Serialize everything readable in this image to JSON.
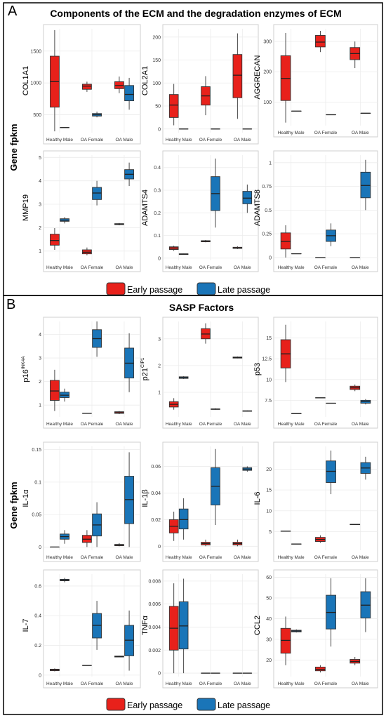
{
  "panel_a": {
    "letter": "A",
    "title": "Components of the ECM and the degradation enzymes of ECM",
    "y_group_label": "Gene fpkm"
  },
  "panel_b": {
    "letter": "B",
    "title": "SASP Factors",
    "y_group_label": "Gene fpkm"
  },
  "legend": {
    "early_label": "Early passage",
    "late_label": "Late passage",
    "early_color": "#E8211B",
    "late_color": "#1A75B8"
  },
  "chart_data": [
    {
      "type": "box",
      "ylabel": "COL1A1",
      "ylabel_sup": "",
      "categories": [
        "Healthy Male",
        "OA Female",
        "OA Male"
      ],
      "yticks": [
        500,
        1000,
        1500
      ],
      "ylim": [
        220,
        1850
      ],
      "series": [
        {
          "name": "Early passage",
          "boxes": [
            [
              240,
              620,
              1020,
              1420,
              1830
            ],
            [
              860,
              900,
              950,
              980,
              1020
            ],
            [
              840,
              910,
              960,
              1020,
              1100
            ]
          ]
        },
        {
          "name": "Late passage",
          "boxes": [
            [
              300,
              300,
              300,
              300,
              300
            ],
            [
              460,
              480,
              500,
              520,
              550
            ],
            [
              580,
              720,
              820,
              960,
              1080
            ]
          ]
        }
      ]
    },
    {
      "type": "box",
      "ylabel": "COL2A1",
      "ylabel_sup": "",
      "categories": [
        "Healthy Male",
        "OA Female",
        "OA Male"
      ],
      "yticks": [
        0,
        50,
        100,
        150,
        200
      ],
      "ylim": [
        -8,
        218
      ],
      "series": [
        {
          "name": "Early passage",
          "boxes": [
            [
              8,
              25,
              52,
              75,
              98
            ],
            [
              30,
              52,
              72,
              92,
              115
            ],
            [
              22,
              68,
              117,
              162,
              208
            ]
          ]
        },
        {
          "name": "Late passage",
          "boxes": [
            [
              0,
              0,
              0,
              0,
              0
            ],
            [
              0,
              0,
              0,
              0,
              0
            ],
            [
              0,
              0,
              0,
              0,
              0
            ]
          ]
        }
      ]
    },
    {
      "type": "box",
      "ylabel": "AGGRECAN",
      "ylabel_sup": "",
      "categories": [
        "Healthy Male",
        "OA Female",
        "OA Male"
      ],
      "yticks": [
        100,
        200,
        300
      ],
      "ylim": [
        22,
        342
      ],
      "series": [
        {
          "name": "Early passage",
          "boxes": [
            [
              32,
              105,
              178,
              253,
              328
            ],
            [
              265,
              282,
              298,
              320,
              335
            ],
            [
              212,
              240,
              260,
              280,
              300
            ]
          ]
        },
        {
          "name": "Late passage",
          "boxes": [
            [
              70,
              70,
              70,
              70,
              70
            ],
            [
              58,
              58,
              58,
              58,
              58
            ],
            [
              63,
              63,
              63,
              63,
              63
            ]
          ]
        }
      ]
    },
    {
      "type": "box",
      "ylabel": "MMP19",
      "ylabel_sup": "",
      "categories": [
        "Healthy Male",
        "OA Female",
        "OA Male"
      ],
      "yticks": [
        1,
        2,
        3,
        4,
        5
      ],
      "ylim": [
        0.6,
        5.1
      ],
      "series": [
        {
          "name": "Early passage",
          "boxes": [
            [
              1.05,
              1.25,
              1.45,
              1.72,
              1.98
            ],
            [
              0.82,
              0.88,
              0.95,
              1.05,
              1.15
            ],
            [
              2.1,
              2.13,
              2.15,
              2.17,
              2.2
            ]
          ]
        },
        {
          "name": "Late passage",
          "boxes": [
            [
              2.18,
              2.27,
              2.32,
              2.38,
              2.45
            ],
            [
              2.95,
              3.2,
              3.48,
              3.72,
              4.0
            ],
            [
              3.78,
              4.08,
              4.28,
              4.48,
              4.78
            ]
          ]
        }
      ]
    },
    {
      "type": "box",
      "ylabel": "ADAMTS4",
      "ylabel_sup": "",
      "categories": [
        "Healthy Male",
        "OA Female",
        "OA Male"
      ],
      "yticks": [
        0.0,
        0.1,
        0.2,
        0.3,
        0.4
      ],
      "ylim": [
        -0.01,
        0.455
      ],
      "series": [
        {
          "name": "Early passage",
          "boxes": [
            [
              0.032,
              0.038,
              0.045,
              0.05,
              0.055
            ],
            [
              0.07,
              0.072,
              0.075,
              0.077,
              0.08
            ],
            [
              0.04,
              0.043,
              0.045,
              0.048,
              0.052
            ]
          ]
        },
        {
          "name": "Late passage",
          "boxes": [
            [
              0.015,
              0.016,
              0.018,
              0.019,
              0.02
            ],
            [
              0.135,
              0.21,
              0.285,
              0.36,
              0.44
            ],
            [
              0.2,
              0.24,
              0.265,
              0.295,
              0.325
            ]
          ]
        }
      ]
    },
    {
      "type": "box",
      "ylabel": "ADAMTS8",
      "ylabel_sup": "",
      "categories": [
        "Healthy Male",
        "OA Female",
        "OA Male"
      ],
      "yticks": [
        0.0,
        0.25,
        0.5,
        0.75,
        1.0
      ],
      "ylim": [
        -0.03,
        1.08
      ],
      "series": [
        {
          "name": "Early passage",
          "boxes": [
            [
              0.0,
              0.09,
              0.17,
              0.26,
              0.34
            ],
            [
              0.0,
              0.0,
              0.0,
              0.0,
              0.0
            ],
            [
              0.0,
              0.0,
              0.0,
              0.0,
              0.0
            ]
          ]
        },
        {
          "name": "Late passage",
          "boxes": [
            [
              0.04,
              0.04,
              0.04,
              0.04,
              0.04
            ],
            [
              0.12,
              0.17,
              0.23,
              0.29,
              0.36
            ],
            [
              0.5,
              0.63,
              0.76,
              0.9,
              1.03
            ]
          ]
        }
      ]
    },
    {
      "type": "box",
      "ylabel": "p16",
      "ylabel_sup": "INK4A",
      "categories": [
        "Healthy Male",
        "OA Female",
        "OA Male"
      ],
      "yticks": [
        1,
        2,
        3,
        4
      ],
      "ylim": [
        0.5,
        4.55
      ],
      "series": [
        {
          "name": "Early passage",
          "boxes": [
            [
              0.75,
              1.2,
              1.6,
              2.05,
              2.5
            ],
            [
              0.65,
              0.65,
              0.65,
              0.65,
              0.65
            ],
            [
              0.62,
              0.65,
              0.68,
              0.72,
              0.75
            ]
          ]
        },
        {
          "name": "Late passage",
          "boxes": [
            [
              1.15,
              1.32,
              1.42,
              1.55,
              1.7
            ],
            [
              3.05,
              3.45,
              3.82,
              4.2,
              4.55
            ],
            [
              1.55,
              2.15,
              2.78,
              3.42,
              4.05
            ]
          ]
        }
      ]
    },
    {
      "type": "box",
      "ylabel": "p21",
      "ylabel_sup": "CIP1",
      "categories": [
        "Healthy Male",
        "OA Female",
        "OA Male"
      ],
      "yticks": [
        1,
        2,
        3
      ],
      "ylim": [
        0.08,
        3.65
      ],
      "series": [
        {
          "name": "Early passage",
          "boxes": [
            [
              0.35,
              0.45,
              0.55,
              0.65,
              0.78
            ],
            [
              2.82,
              3.0,
              3.18,
              3.38,
              3.58
            ],
            [
              2.27,
              2.28,
              2.3,
              2.32,
              2.34
            ]
          ]
        },
        {
          "name": "Late passage",
          "boxes": [
            [
              1.5,
              1.52,
              1.55,
              1.58,
              1.6
            ],
            [
              0.35,
              0.36,
              0.37,
              0.38,
              0.4
            ],
            [
              0.28,
              0.29,
              0.3,
              0.31,
              0.32
            ]
          ]
        }
      ]
    },
    {
      "type": "box",
      "ylabel": "p53",
      "ylabel_sup": "",
      "categories": [
        "Healthy Male",
        "OA Female",
        "OA Male"
      ],
      "yticks": [
        7.5,
        10.0,
        12.5,
        15.0
      ],
      "ylim": [
        5.5,
        17.0
      ],
      "series": [
        {
          "name": "Early passage",
          "boxes": [
            [
              9.7,
              11.4,
              13.1,
              14.8,
              16.6
            ],
            [
              7.8,
              7.8,
              7.8,
              7.8,
              7.8
            ],
            [
              8.6,
              8.8,
              9.0,
              9.2,
              9.4
            ]
          ]
        },
        {
          "name": "Late passage",
          "boxes": [
            [
              5.9,
              5.9,
              5.9,
              5.9,
              5.9
            ],
            [
              7.15,
              7.15,
              7.15,
              7.15,
              7.15
            ],
            [
              7.0,
              7.15,
              7.35,
              7.5,
              7.65
            ]
          ]
        }
      ]
    },
    {
      "type": "box",
      "ylabel": "IL-1α",
      "ylabel_sup": "",
      "categories": [
        "Healthy Male",
        "OA Female",
        "OA Male"
      ],
      "yticks": [
        0.0,
        0.05,
        0.1,
        0.15
      ],
      "ylim": [
        -0.005,
        0.155
      ],
      "series": [
        {
          "name": "Early passage",
          "boxes": [
            [
              0.0,
              0.0,
              0.0,
              0.0,
              0.0
            ],
            [
              0.0,
              0.007,
              0.012,
              0.018,
              0.026
            ],
            [
              0.001,
              0.002,
              0.003,
              0.004,
              0.006
            ]
          ]
        },
        {
          "name": "Late passage",
          "boxes": [
            [
              0.005,
              0.012,
              0.016,
              0.02,
              0.026
            ],
            [
              0.0,
              0.017,
              0.034,
              0.051,
              0.069
            ],
            [
              0.0,
              0.036,
              0.073,
              0.109,
              0.146
            ]
          ]
        }
      ]
    },
    {
      "type": "box",
      "ylabel": "IL-1β",
      "ylabel_sup": "",
      "categories": [
        "Healthy Male",
        "OA Female",
        "OA Male"
      ],
      "yticks": [
        0.0,
        0.02,
        0.04,
        0.06
      ],
      "ylim": [
        -0.003,
        0.075
      ],
      "series": [
        {
          "name": "Early passage",
          "boxes": [
            [
              0.004,
              0.01,
              0.015,
              0.02,
              0.026
            ],
            [
              0.0,
              0.001,
              0.002,
              0.003,
              0.005
            ],
            [
              0.0,
              0.001,
              0.002,
              0.003,
              0.005
            ]
          ]
        },
        {
          "name": "Late passage",
          "boxes": [
            [
              0.005,
              0.013,
              0.02,
              0.028,
              0.036
            ],
            [
              0.016,
              0.031,
              0.045,
              0.059,
              0.073
            ],
            [
              0.056,
              0.057,
              0.058,
              0.059,
              0.06
            ]
          ]
        }
      ]
    },
    {
      "type": "box",
      "ylabel": "IL-6",
      "ylabel_sup": "",
      "categories": [
        "Healthy Male",
        "OA Female",
        "OA Male"
      ],
      "yticks": [
        5,
        10,
        15,
        20
      ],
      "ylim": [
        0.5,
        25.5
      ],
      "series": [
        {
          "name": "Early passage",
          "boxes": [
            [
              5.1,
              5.1,
              5.1,
              5.1,
              5.1
            ],
            [
              2.3,
              2.6,
              3.1,
              3.6,
              4.1
            ],
            [
              6.6,
              6.65,
              6.7,
              6.75,
              6.8
            ]
          ]
        },
        {
          "name": "Late passage",
          "boxes": [
            [
              2.0,
              2.0,
              2.0,
              2.0,
              2.0
            ],
            [
              14.0,
              16.8,
              19.5,
              22.0,
              24.5
            ],
            [
              17.5,
              19.0,
              20.3,
              21.6,
              23.0
            ]
          ]
        }
      ]
    },
    {
      "type": "box",
      "ylabel": "IL-7",
      "ylabel_sup": "",
      "categories": [
        "Healthy Male",
        "OA Female",
        "OA Male"
      ],
      "yticks": [
        0.0,
        0.2,
        0.4,
        0.6
      ],
      "ylim": [
        -0.01,
        0.68
      ],
      "series": [
        {
          "name": "Early passage",
          "boxes": [
            [
              0.025,
              0.03,
              0.035,
              0.04,
              0.045
            ],
            [
              0.065,
              0.065,
              0.065,
              0.065,
              0.065
            ],
            [
              0.12,
              0.122,
              0.125,
              0.128,
              0.13
            ]
          ]
        },
        {
          "name": "Late passage",
          "boxes": [
            [
              0.625,
              0.635,
              0.64,
              0.645,
              0.655
            ],
            [
              0.17,
              0.25,
              0.335,
              0.415,
              0.5
            ],
            [
              0.03,
              0.13,
              0.235,
              0.335,
              0.435
            ]
          ]
        }
      ]
    },
    {
      "type": "box",
      "ylabel": "TNFα",
      "ylabel_sup": "",
      "categories": [
        "Healthy Male",
        "OA Female",
        "OA Male"
      ],
      "yticks": [
        0.0,
        0.002,
        0.004,
        0.006,
        0.008
      ],
      "ylim": [
        -0.0003,
        0.0086
      ],
      "series": [
        {
          "name": "Early passage",
          "boxes": [
            [
              0.0,
              0.002,
              0.0039,
              0.0058,
              0.0078
            ],
            [
              0.0,
              0.0,
              0.0,
              0.0,
              0.0
            ],
            [
              0.0,
              0.0,
              0.0,
              0.0,
              0.0
            ]
          ]
        },
        {
          "name": "Late passage",
          "boxes": [
            [
              0.0,
              0.0021,
              0.0041,
              0.0062,
              0.0082
            ],
            [
              0.0,
              0.0,
              0.0,
              0.0,
              0.0
            ],
            [
              0.0,
              0.0,
              0.0,
              0.0,
              0.0
            ]
          ]
        }
      ]
    },
    {
      "type": "box",
      "ylabel": "CCL2",
      "ylabel_sup": "",
      "categories": [
        "Healthy Male",
        "OA Female",
        "OA Male"
      ],
      "yticks": [
        20,
        30,
        40,
        50,
        60
      ],
      "ylim": [
        12.0,
        61.5
      ],
      "series": [
        {
          "name": "Early passage",
          "boxes": [
            [
              17.5,
              23.3,
              29.5,
              35.3,
              41.0
            ],
            [
              14.0,
              14.8,
              15.5,
              16.6,
              17.5
            ],
            [
              17.5,
              18.5,
              19.3,
              20.3,
              21.5
            ]
          ]
        },
        {
          "name": "Late passage",
          "boxes": [
            [
              33.3,
              33.6,
              34.0,
              34.4,
              34.8
            ],
            [
              26.5,
              35.0,
              43.0,
              51.3,
              59.5
            ],
            [
              33.5,
              40.3,
              46.5,
              53.0,
              59.5
            ]
          ]
        }
      ]
    }
  ]
}
